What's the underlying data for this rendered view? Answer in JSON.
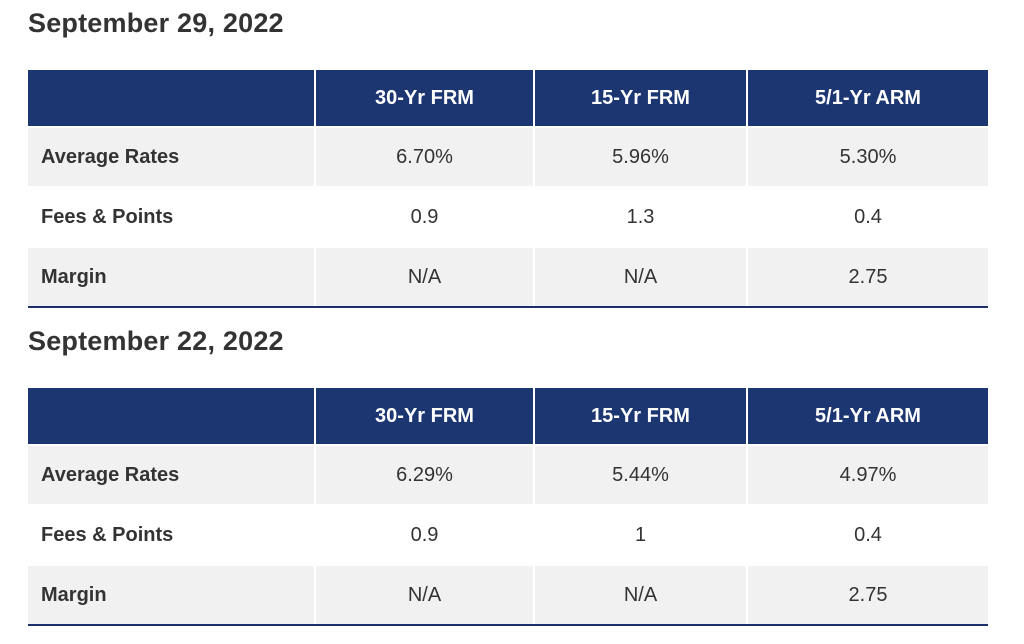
{
  "tables": [
    {
      "date": "September 29, 2022",
      "headers": [
        "",
        "30-Yr FRM",
        "15-Yr FRM",
        "5/1-Yr ARM"
      ],
      "rows": [
        {
          "label": "Average Rates",
          "values": [
            "6.70%",
            "5.96%",
            "5.30%"
          ]
        },
        {
          "label": "Fees & Points",
          "values": [
            "0.9",
            "1.3",
            "0.4"
          ]
        },
        {
          "label": "Margin",
          "values": [
            "N/A",
            "N/A",
            "2.75"
          ]
        }
      ]
    },
    {
      "date": "September 22, 2022",
      "headers": [
        "",
        "30-Yr FRM",
        "15-Yr FRM",
        "5/1-Yr ARM"
      ],
      "rows": [
        {
          "label": "Average Rates",
          "values": [
            "6.29%",
            "5.44%",
            "4.97%"
          ]
        },
        {
          "label": "Fees & Points",
          "values": [
            "0.9",
            "1",
            "0.4"
          ]
        },
        {
          "label": "Margin",
          "values": [
            "N/A",
            "N/A",
            "2.75"
          ]
        }
      ]
    }
  ],
  "colors": {
    "header_bg": "#1c3672",
    "header_text": "#ffffff",
    "shaded_row": "#f1f1f1",
    "text": "#333333"
  }
}
